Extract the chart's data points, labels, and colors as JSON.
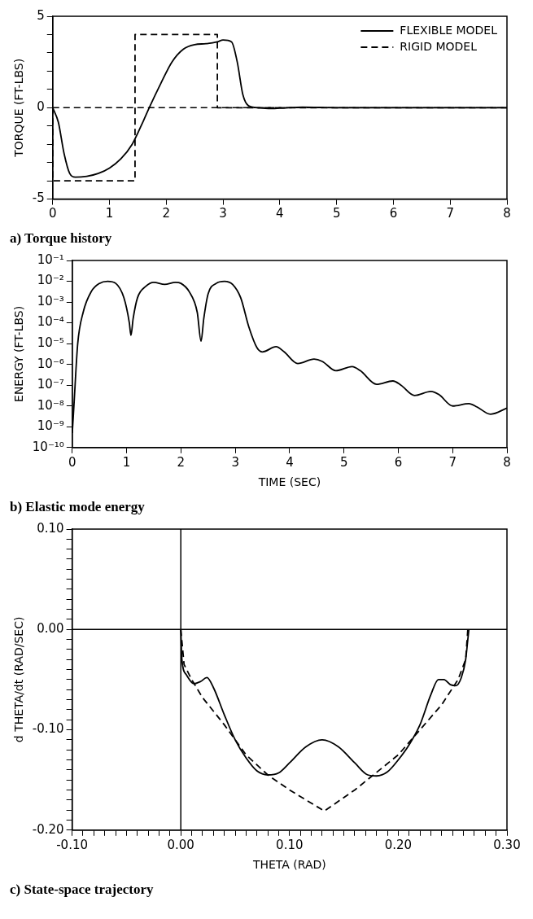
{
  "chart_data": [
    {
      "type": "line",
      "title": "a) Torque history",
      "ylabel": "TORQUE (FT-LBS)",
      "xlim": [
        0,
        8
      ],
      "ylim": [
        -5,
        5
      ],
      "xticks": [
        0,
        1,
        2,
        3,
        4,
        5,
        6,
        7,
        8
      ],
      "yticks": [
        -5,
        {
          "value": -4,
          "label": null
        },
        {
          "value": -3,
          "label": null
        },
        {
          "value": -2,
          "label": null
        },
        {
          "value": -1,
          "label": null
        },
        0,
        {
          "value": 1,
          "label": null
        },
        {
          "value": 2,
          "label": null
        },
        {
          "value": 3,
          "label": null
        },
        {
          "value": 4,
          "label": null
        },
        5
      ],
      "legend": "top right",
      "ref_lines": [
        {
          "axis": "y",
          "value": 0,
          "line_style": "dashed",
          "color": "#000000"
        }
      ],
      "series": [
        {
          "name": "FLEXIBLE MODEL",
          "color": "#000000",
          "line_style": "solid",
          "x": [
            0,
            0.1,
            0.2,
            0.3,
            0.4,
            0.6,
            0.8,
            1.0,
            1.2,
            1.4,
            1.6,
            1.7,
            1.9,
            2.1,
            2.3,
            2.5,
            2.7,
            2.9,
            3.0,
            3.15,
            3.25,
            3.35,
            3.45,
            3.6,
            3.8,
            4.0,
            4.4,
            5,
            8
          ],
          "values": [
            0,
            -0.8,
            -2.5,
            -3.6,
            -3.8,
            -3.75,
            -3.6,
            -3.3,
            -2.8,
            -2.0,
            -0.7,
            0,
            1.3,
            2.5,
            3.2,
            3.45,
            3.5,
            3.6,
            3.7,
            3.6,
            2.5,
            0.7,
            0.1,
            0,
            -0.05,
            -0.03,
            0.03,
            0,
            0
          ]
        },
        {
          "name": "RIGID MODEL",
          "color": "#000000",
          "line_style": "dashed",
          "x": [
            0,
            0,
            1.45,
            1.45,
            2.9,
            2.9,
            8
          ],
          "values": [
            0,
            -4,
            -4,
            4,
            4,
            0,
            0
          ]
        }
      ]
    },
    {
      "type": "line",
      "title": "b) Elastic mode energy",
      "xlabel": "TIME (SEC)",
      "ylabel": "ENERGY (FT-LBS)",
      "log": "y",
      "xlim": [
        0,
        8
      ],
      "ylim": [
        1e-10,
        0.1
      ],
      "xticks": [
        0,
        1,
        2,
        3,
        4,
        5,
        6,
        7,
        8
      ],
      "yticks": [
        {
          "value": 1e-10,
          "label": "10⁻¹⁰"
        },
        {
          "value": 1e-09,
          "label": "10⁻⁹"
        },
        {
          "value": 1e-08,
          "label": "10⁻⁸"
        },
        {
          "value": 1e-07,
          "label": "10⁻⁷"
        },
        {
          "value": 1e-06,
          "label": "10⁻⁶"
        },
        {
          "value": 1e-05,
          "label": "10⁻⁵"
        },
        {
          "value": 0.0001,
          "label": "10⁻⁴"
        },
        {
          "value": 0.001,
          "label": "10⁻³"
        },
        {
          "value": 0.01,
          "label": "10⁻²"
        },
        {
          "value": 0.1,
          "label": "10⁻¹"
        }
      ],
      "series": [
        {
          "color": "#000000",
          "line_style": "solid",
          "x": [
            0,
            0.03,
            0.1,
            0.2,
            0.35,
            0.5,
            0.65,
            0.8,
            0.95,
            1.05,
            1.08,
            1.12,
            1.2,
            1.35,
            1.5,
            1.7,
            1.9,
            2.0,
            2.15,
            2.3,
            2.37,
            2.42,
            2.5,
            2.65,
            2.8,
            2.95,
            3.1,
            3.25,
            3.4,
            3.5,
            3.75,
            3.9,
            4.15,
            4.45,
            4.6,
            4.85,
            5.15,
            5.3,
            5.6,
            5.9,
            6.05,
            6.3,
            6.6,
            6.75,
            7.0,
            7.3,
            7.45,
            7.7,
            8
          ],
          "values": [
            5e-10,
            1e-08,
            1e-05,
            0.00032,
            0.0032,
            0.0079,
            0.01,
            0.0079,
            0.0016,
            0.0001,
            2.5e-05,
            0.00016,
            0.0016,
            0.0056,
            0.0089,
            0.0071,
            0.0089,
            0.0079,
            0.0032,
            0.00032,
            1.3e-05,
            0.00016,
            0.0025,
            0.0079,
            0.01,
            0.0071,
            0.0016,
            6.3e-05,
            6.3e-06,
            4e-06,
            7.1e-06,
            4e-06,
            1.1e-06,
            1.8e-06,
            1.4e-06,
            5e-07,
            7.9e-07,
            5e-07,
            1.1e-07,
            1.6e-07,
            1e-07,
            3.2e-08,
            5e-08,
            3.5e-08,
            1e-08,
            1.3e-08,
            8.9e-09,
            4e-09,
            7.9e-09
          ]
        }
      ]
    },
    {
      "type": "line",
      "title": "c) State-space trajectory",
      "xlabel": "THETA (RAD)",
      "ylabel": "d THETA/dt (RAD/SEC)",
      "xlim": [
        -0.1,
        0.3
      ],
      "ylim": [
        -0.2,
        0.1
      ],
      "xticks": [
        {
          "value": -0.1,
          "label": "-0.10"
        },
        {
          "value": -0.09,
          "label": null
        },
        {
          "value": -0.08,
          "label": null
        },
        {
          "value": -0.07,
          "label": null
        },
        {
          "value": -0.06,
          "label": null
        },
        {
          "value": -0.05,
          "label": null
        },
        {
          "value": -0.04,
          "label": null
        },
        {
          "value": -0.03,
          "label": null
        },
        {
          "value": -0.02,
          "label": null
        },
        {
          "value": -0.01,
          "label": null
        },
        {
          "value": 0,
          "label": "0.00"
        },
        {
          "value": 0.01,
          "label": null
        },
        {
          "value": 0.02,
          "label": null
        },
        {
          "value": 0.03,
          "label": null
        },
        {
          "value": 0.04,
          "label": null
        },
        {
          "value": 0.05,
          "label": null
        },
        {
          "value": 0.06,
          "label": null
        },
        {
          "value": 0.07,
          "label": null
        },
        {
          "value": 0.08,
          "label": null
        },
        {
          "value": 0.09,
          "label": null
        },
        {
          "value": 0.1,
          "label": "0.10"
        },
        {
          "value": 0.11,
          "label": null
        },
        {
          "value": 0.12,
          "label": null
        },
        {
          "value": 0.13,
          "label": null
        },
        {
          "value": 0.14,
          "label": null
        },
        {
          "value": 0.15,
          "label": null
        },
        {
          "value": 0.16,
          "label": null
        },
        {
          "value": 0.17,
          "label": null
        },
        {
          "value": 0.18,
          "label": null
        },
        {
          "value": 0.19,
          "label": null
        },
        {
          "value": 0.2,
          "label": "0.20"
        },
        {
          "value": 0.21,
          "label": null
        },
        {
          "value": 0.22,
          "label": null
        },
        {
          "value": 0.23,
          "label": null
        },
        {
          "value": 0.24,
          "label": null
        },
        {
          "value": 0.25,
          "label": null
        },
        {
          "value": 0.26,
          "label": null
        },
        {
          "value": 0.27,
          "label": null
        },
        {
          "value": 0.28,
          "label": null
        },
        {
          "value": 0.29,
          "label": null
        },
        {
          "value": 0.3,
          "label": "0.30"
        }
      ],
      "yticks": [
        {
          "value": -0.2,
          "label": "-0.20"
        },
        {
          "value": -0.19,
          "label": null
        },
        {
          "value": -0.18,
          "label": null
        },
        {
          "value": -0.17,
          "label": null
        },
        {
          "value": -0.16,
          "label": null
        },
        {
          "value": -0.15,
          "label": null
        },
        {
          "value": -0.14,
          "label": null
        },
        {
          "value": -0.13,
          "label": null
        },
        {
          "value": -0.12,
          "label": null
        },
        {
          "value": -0.11,
          "label": null
        },
        {
          "value": -0.1,
          "label": "-0.10"
        },
        {
          "value": -0.09,
          "label": null
        },
        {
          "value": -0.08,
          "label": null
        },
        {
          "value": -0.07,
          "label": null
        },
        {
          "value": -0.06,
          "label": null
        },
        {
          "value": -0.05,
          "label": null
        },
        {
          "value": -0.04,
          "label": null
        },
        {
          "value": -0.03,
          "label": null
        },
        {
          "value": -0.02,
          "label": null
        },
        {
          "value": -0.01,
          "label": null
        },
        {
          "value": 0,
          "label": "0.00"
        },
        {
          "value": 0.01,
          "label": null
        },
        {
          "value": 0.02,
          "label": null
        },
        {
          "value": 0.03,
          "label": null
        },
        {
          "value": 0.04,
          "label": null
        },
        {
          "value": 0.05,
          "label": null
        },
        {
          "value": 0.06,
          "label": null
        },
        {
          "value": 0.07,
          "label": null
        },
        {
          "value": 0.08,
          "label": null
        },
        {
          "value": 0.09,
          "label": null
        },
        {
          "value": 0.1,
          "label": "0.10"
        }
      ],
      "ref_lines": [
        {
          "axis": "x",
          "value": 0,
          "line_style": "solid",
          "color": "#000000"
        },
        {
          "axis": "y",
          "value": 0,
          "line_style": "solid",
          "color": "#000000"
        }
      ],
      "series": [
        {
          "color": "#000000",
          "line_style": "solid",
          "x": [
            0,
            0.001,
            0.005,
            0.012,
            0.018,
            0.024,
            0.03,
            0.04,
            0.05,
            0.06,
            0.07,
            0.08,
            0.09,
            0.1,
            0.115,
            0.13,
            0.145,
            0.16,
            0.172,
            0.18,
            0.19,
            0.2,
            0.21,
            0.22,
            0.23,
            0.237,
            0.242,
            0.248,
            0.253,
            0.258,
            0.262,
            0.264,
            0.265
          ],
          "values": [
            0,
            -0.03,
            -0.045,
            -0.054,
            -0.052,
            -0.048,
            -0.058,
            -0.085,
            -0.11,
            -0.128,
            -0.141,
            -0.145,
            -0.143,
            -0.133,
            -0.117,
            -0.11,
            -0.117,
            -0.133,
            -0.145,
            -0.146,
            -0.142,
            -0.13,
            -0.115,
            -0.095,
            -0.065,
            -0.05,
            -0.05,
            -0.055,
            -0.056,
            -0.048,
            -0.03,
            -0.01,
            0
          ]
        },
        {
          "color": "#000000",
          "line_style": "dashed",
          "x": [
            0,
            0.003,
            0.01,
            0.02,
            0.04,
            0.06,
            0.08,
            0.1,
            0.132,
            0.16,
            0.2,
            0.22,
            0.24,
            0.255,
            0.262,
            0.264
          ],
          "values": [
            0,
            -0.035,
            -0.05,
            -0.068,
            -0.095,
            -0.125,
            -0.145,
            -0.16,
            -0.181,
            -0.16,
            -0.125,
            -0.1,
            -0.075,
            -0.05,
            -0.03,
            0
          ]
        }
      ]
    }
  ]
}
